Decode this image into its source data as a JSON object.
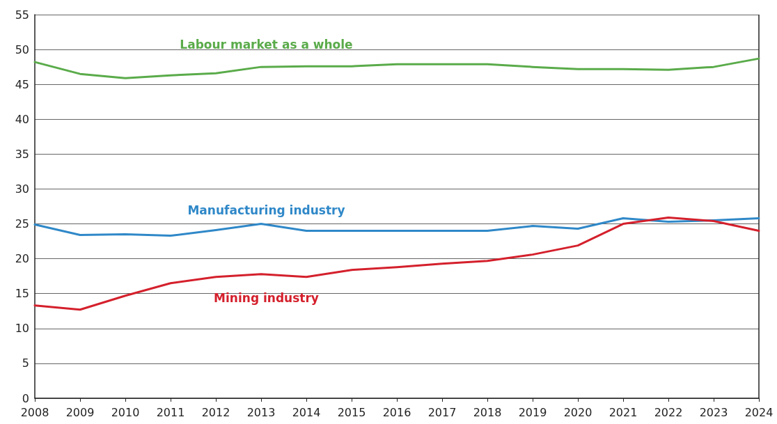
{
  "chart_data": {
    "type": "line",
    "categories": [
      "2008",
      "2009",
      "2010",
      "2011",
      "2012",
      "2013",
      "2014",
      "2015",
      "2016",
      "2017",
      "2018",
      "2019",
      "2020",
      "2021",
      "2022",
      "2023",
      "2024"
    ],
    "series": [
      {
        "name": "Labour market as a whole",
        "color": "#5aab4a",
        "values": [
          48.2,
          46.5,
          45.9,
          46.3,
          46.6,
          47.5,
          47.6,
          47.6,
          47.9,
          47.9,
          47.9,
          47.5,
          47.2,
          47.2,
          47.1,
          47.5,
          48.7
        ]
      },
      {
        "name": "Manufacturing industry",
        "color": "#2f88c8",
        "values": [
          24.9,
          23.4,
          23.5,
          23.3,
          24.1,
          25.0,
          24.0,
          24.0,
          24.0,
          24.0,
          24.0,
          24.7,
          24.3,
          25.8,
          25.3,
          25.5,
          25.8
        ]
      },
      {
        "name": "Mining industry",
        "color": "#d4202c",
        "values": [
          13.3,
          12.7,
          14.7,
          16.5,
          17.4,
          17.8,
          17.4,
          18.4,
          18.8,
          19.3,
          19.7,
          20.6,
          21.9,
          25.0,
          25.9,
          25.4,
          24.0
        ]
      }
    ],
    "ylim": [
      0,
      55
    ],
    "yticks": [
      0,
      5,
      10,
      15,
      20,
      25,
      30,
      35,
      40,
      45,
      50,
      55
    ],
    "grid": "y",
    "legend": false,
    "marker": "none",
    "line_style": "solid"
  }
}
